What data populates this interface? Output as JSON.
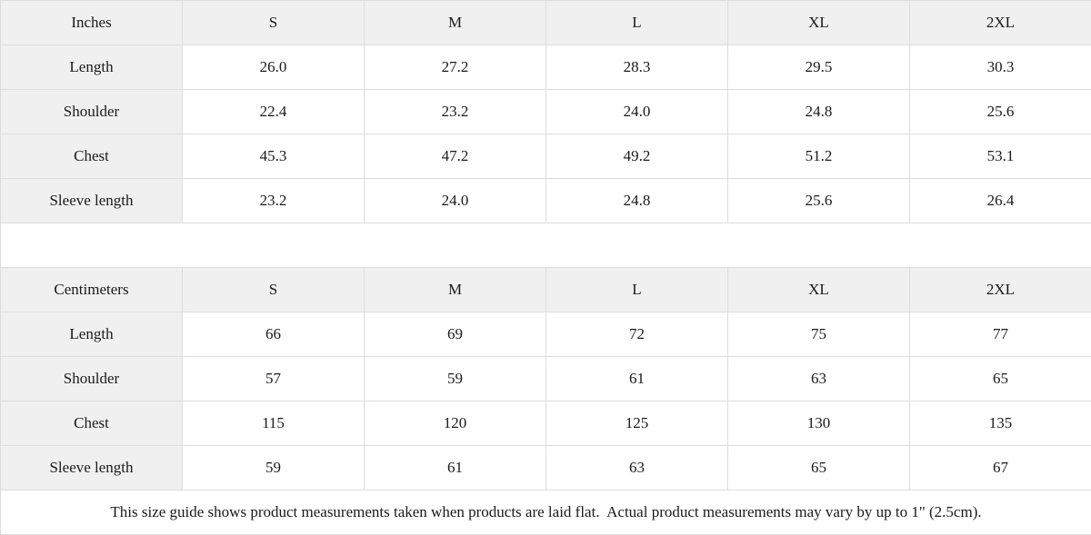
{
  "tables": [
    {
      "unit_label": "Inches",
      "sizes": [
        "S",
        "M",
        "L",
        "XL",
        "2XL"
      ],
      "rows": [
        {
          "label": "Length",
          "values": [
            "26.0",
            "27.2",
            "28.3",
            "29.5",
            "30.3"
          ]
        },
        {
          "label": "Shoulder",
          "values": [
            "22.4",
            "23.2",
            "24.0",
            "24.8",
            "25.6"
          ]
        },
        {
          "label": "Chest",
          "values": [
            "45.3",
            "47.2",
            "49.2",
            "51.2",
            "53.1"
          ]
        },
        {
          "label": "Sleeve length",
          "values": [
            "23.2",
            "24.0",
            "24.8",
            "25.6",
            "26.4"
          ]
        }
      ]
    },
    {
      "unit_label": "Centimeters",
      "sizes": [
        "S",
        "M",
        "L",
        "XL",
        "2XL"
      ],
      "rows": [
        {
          "label": "Length",
          "values": [
            "66",
            "69",
            "72",
            "75",
            "77"
          ]
        },
        {
          "label": "Shoulder",
          "values": [
            "57",
            "59",
            "61",
            "63",
            "65"
          ]
        },
        {
          "label": "Chest",
          "values": [
            "115",
            "120",
            "125",
            "130",
            "135"
          ]
        },
        {
          "label": "Sleeve length",
          "values": [
            "59",
            "61",
            "63",
            "65",
            "67"
          ]
        }
      ]
    }
  ],
  "footer": {
    "note": "This size guide shows product measurements taken when products are laid flat.  Actual product measurements may vary by up to 1\" (2.5cm)."
  },
  "colors": {
    "cell_bg": "#f0f0f0",
    "border": "#dddddd",
    "text": "#1a1a1a",
    "page_bg": "#ffffff"
  }
}
